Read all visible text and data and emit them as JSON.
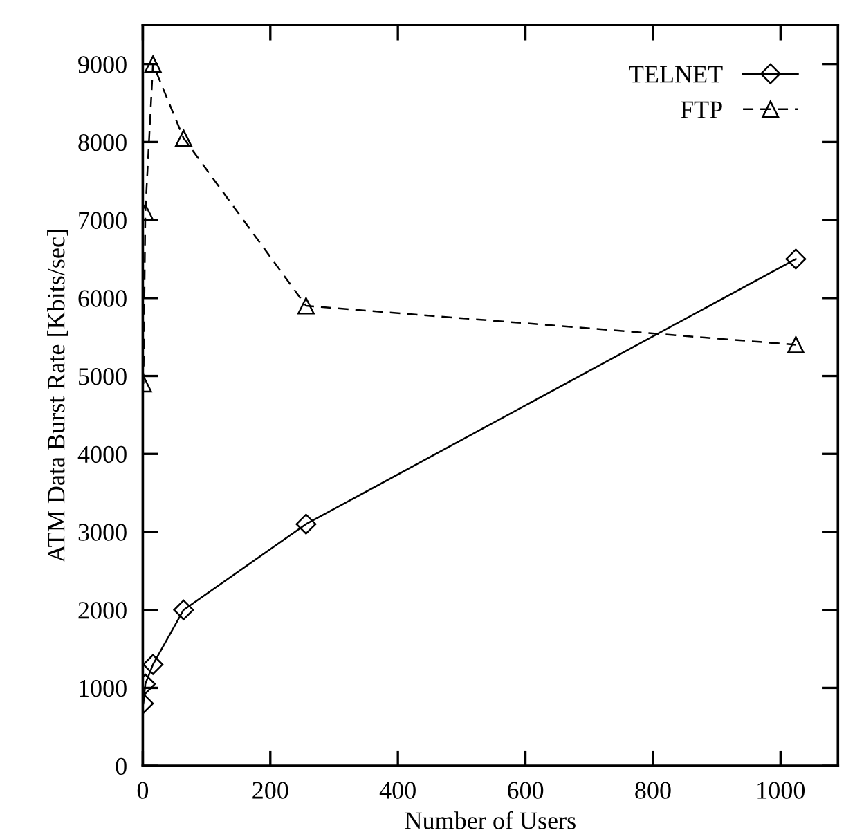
{
  "chart_data": {
    "type": "line",
    "xlabel": "Number of Users",
    "ylabel": "ATM Data Burst Rate [Kbits/sec]",
    "xlim": [
      0,
      1090
    ],
    "ylim": [
      0,
      9500
    ],
    "xticks": [
      0,
      200,
      400,
      600,
      800,
      1000
    ],
    "yticks": [
      0,
      1000,
      2000,
      3000,
      4000,
      5000,
      6000,
      7000,
      8000,
      9000
    ],
    "grid": false,
    "legend": "top right",
    "series": [
      {
        "name": "TELNET",
        "color": "#000000",
        "marker": "diamond",
        "line_style": "solid",
        "x": [
          1,
          4,
          16,
          64,
          256,
          1024
        ],
        "values": [
          800,
          1050,
          1300,
          2000,
          3100,
          6500
        ]
      },
      {
        "name": "FTP",
        "color": "#000000",
        "marker": "triangle",
        "line_style": "dashed",
        "x": [
          1,
          4,
          16,
          64,
          256,
          1024
        ],
        "values": [
          4900,
          7100,
          9000,
          8050,
          5900,
          5400
        ]
      }
    ]
  }
}
